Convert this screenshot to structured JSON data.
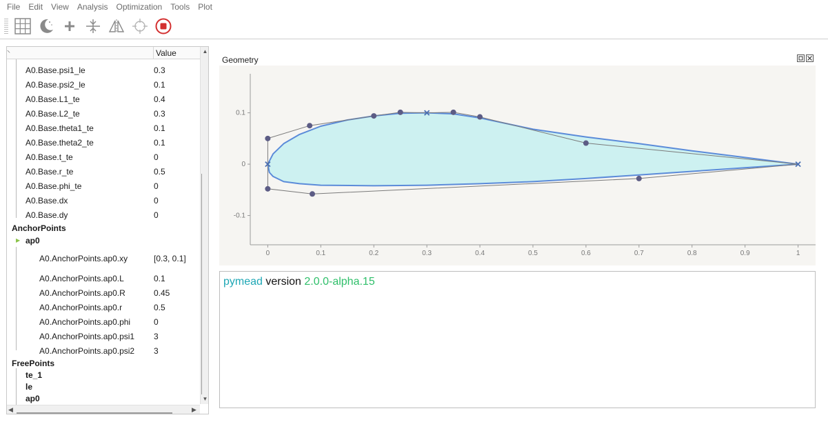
{
  "menu": [
    "File",
    "Edit",
    "View",
    "Analysis",
    "Optimization",
    "Tools",
    "Plot"
  ],
  "toolbar_icons": [
    "grid-icon",
    "dark-mode-icon",
    "add-icon",
    "snap-icon",
    "mirror-icon",
    "crosshair-icon",
    "stop-icon"
  ],
  "colors": {
    "stop": "#d32f2f",
    "airfoil_fill": "#cdf1f1",
    "airfoil_line": "#5b8bd9",
    "control_point": "#5c5c85"
  },
  "tree": {
    "header_value": "Value",
    "base_rows": [
      {
        "name": "A0.Base.psi1_le",
        "value": "0.3"
      },
      {
        "name": "A0.Base.psi2_le",
        "value": "0.1"
      },
      {
        "name": "A0.Base.L1_te",
        "value": "0.4"
      },
      {
        "name": "A0.Base.L2_te",
        "value": "0.3"
      },
      {
        "name": "A0.Base.theta1_te",
        "value": "0.1"
      },
      {
        "name": "A0.Base.theta2_te",
        "value": "0.1"
      },
      {
        "name": "A0.Base.t_te",
        "value": "0"
      },
      {
        "name": "A0.Base.r_te",
        "value": "0.5"
      },
      {
        "name": "A0.Base.phi_te",
        "value": "0"
      },
      {
        "name": "A0.Base.dx",
        "value": "0"
      },
      {
        "name": "A0.Base.dy",
        "value": "0"
      }
    ],
    "anchor_points_label": "AnchorPoints",
    "ap0_label": "ap0",
    "ap0_rows": [
      {
        "name": "A0.AnchorPoints.ap0.xy",
        "value": "[0.3, 0.1]"
      },
      {
        "name": "A0.AnchorPoints.ap0.L",
        "value": "0.1"
      },
      {
        "name": "A0.AnchorPoints.ap0.R",
        "value": "0.45"
      },
      {
        "name": "A0.AnchorPoints.ap0.r",
        "value": "0.5"
      },
      {
        "name": "A0.AnchorPoints.ap0.phi",
        "value": "0"
      },
      {
        "name": "A0.AnchorPoints.ap0.psi1",
        "value": "3"
      },
      {
        "name": "A0.AnchorPoints.ap0.psi2",
        "value": "3"
      }
    ],
    "free_points_label": "FreePoints",
    "free_points": [
      "te_1",
      "le",
      "ap0"
    ]
  },
  "geometry": {
    "title": "Geometry",
    "chart_data": {
      "type": "scatter",
      "xlim": [
        -0.033,
        1.033
      ],
      "ylim": [
        -0.157,
        0.176
      ],
      "xticks": [
        "0",
        "0.1",
        "0.2",
        "0.3",
        "0.4",
        "0.5",
        "0.6",
        "0.7",
        "0.8",
        "0.9",
        "1"
      ],
      "xtick_values": [
        0,
        0.1,
        0.2,
        0.3,
        0.4,
        0.5,
        0.6,
        0.7,
        0.8,
        0.9,
        1
      ],
      "yticks": [
        "0.1",
        "0",
        "-0.1"
      ],
      "ytick_values": [
        0.1,
        0,
        -0.1
      ],
      "upper_surface": [
        [
          1,
          0
        ],
        [
          0.9,
          0.013
        ],
        [
          0.8,
          0.026
        ],
        [
          0.7,
          0.04
        ],
        [
          0.6,
          0.053
        ],
        [
          0.5,
          0.068
        ],
        [
          0.4,
          0.09
        ],
        [
          0.35,
          0.098
        ],
        [
          0.3,
          0.1
        ],
        [
          0.25,
          0.099
        ],
        [
          0.2,
          0.094
        ],
        [
          0.15,
          0.086
        ],
        [
          0.1,
          0.074
        ],
        [
          0.06,
          0.058
        ],
        [
          0.03,
          0.04
        ],
        [
          0.01,
          0.02
        ],
        [
          0,
          0
        ]
      ],
      "lower_surface": [
        [
          0,
          0
        ],
        [
          0.003,
          -0.016
        ],
        [
          0.01,
          -0.024
        ],
        [
          0.03,
          -0.034
        ],
        [
          0.06,
          -0.038
        ],
        [
          0.1,
          -0.041
        ],
        [
          0.2,
          -0.042
        ],
        [
          0.3,
          -0.041
        ],
        [
          0.4,
          -0.038
        ],
        [
          0.5,
          -0.034
        ],
        [
          0.6,
          -0.028
        ],
        [
          0.7,
          -0.021
        ],
        [
          0.8,
          -0.014
        ],
        [
          0.9,
          -0.007
        ],
        [
          1,
          0
        ]
      ],
      "control_polygon_upper": [
        [
          0,
          0
        ],
        [
          0,
          0.05
        ],
        [
          0.079,
          0.075
        ],
        [
          0.2,
          0.094
        ],
        [
          0.25,
          0.101
        ],
        [
          0.3,
          0.1
        ],
        [
          0.35,
          0.101
        ],
        [
          0.4,
          0.092
        ],
        [
          0.6,
          0.041
        ],
        [
          1,
          0
        ]
      ],
      "control_polygon_lower": [
        [
          0,
          0
        ],
        [
          0,
          -0.048
        ],
        [
          0.084,
          -0.058
        ],
        [
          0.7,
          -0.028
        ],
        [
          1,
          0
        ]
      ],
      "control_points": [
        [
          0,
          0.05
        ],
        [
          0.079,
          0.075
        ],
        [
          0.2,
          0.094
        ],
        [
          0.25,
          0.101
        ],
        [
          0.35,
          0.101
        ],
        [
          0.4,
          0.092
        ],
        [
          0.6,
          0.041
        ],
        [
          0,
          -0.048
        ],
        [
          0.084,
          -0.058
        ],
        [
          0.7,
          -0.028
        ]
      ],
      "anchor_points": [
        [
          0,
          0
        ],
        [
          0.3,
          0.1
        ],
        [
          1,
          0
        ]
      ]
    }
  },
  "console": {
    "app": "pymead",
    "word": "version",
    "version": "2.0.0-alpha.15"
  }
}
